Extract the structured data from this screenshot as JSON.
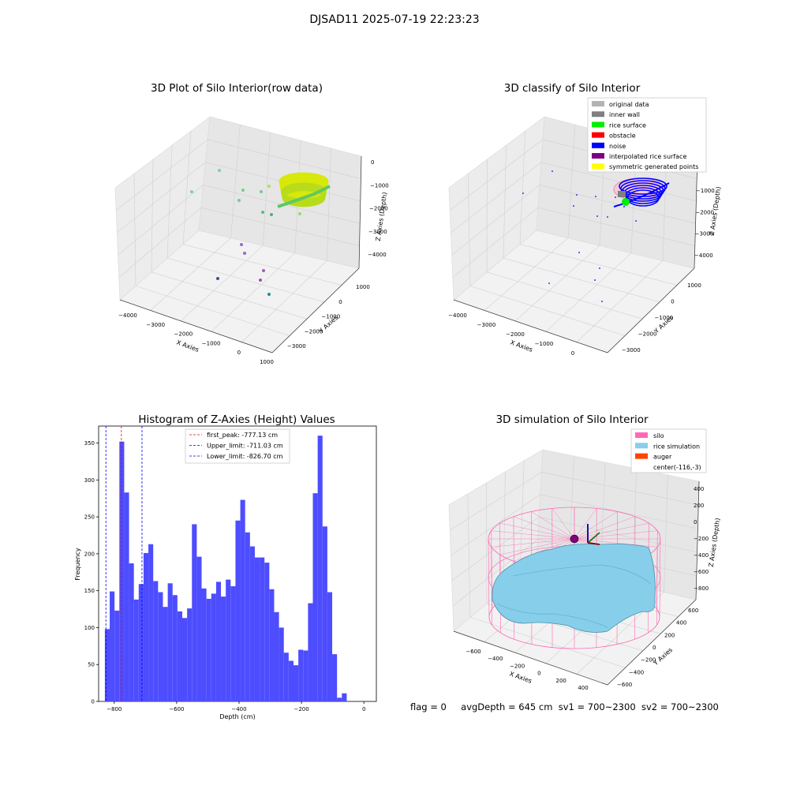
{
  "figure_title": "DJSAD11 2025-07-19 22:23:23",
  "status_line": {
    "flag": "flag = 0",
    "avg_depth": "avgDepth = 645 cm",
    "sv1": "sv1 = 700~2300",
    "sv2": "sv2 = 700~2300"
  },
  "chart_data": [
    {
      "type": "scatter",
      "title": "3D Plot of Silo Interior(row data)",
      "projection": "3d",
      "xlabel": "X Axies",
      "ylabel": "Y Axies",
      "zlabel": "Z Axies (Depth)",
      "x_ticks": [
        "−4000",
        "−3000",
        "−2000",
        "−1000",
        "0",
        "1000"
      ],
      "y_ticks": [
        "−3000",
        "−2000",
        "−1000",
        "0",
        "1000"
      ],
      "z_ticks": [
        "0",
        "−1000",
        "−2000",
        "−3000",
        "−4000"
      ],
      "colormap": "viridis",
      "grid": true
    },
    {
      "type": "scatter",
      "title": "3D classify of Silo Interior",
      "projection": "3d",
      "xlabel": "X Axies",
      "ylabel": "Y Axies",
      "zlabel": "Z Axies (Depth)",
      "x_ticks": [
        "−4000",
        "−3000",
        "−2000",
        "−1000",
        "0"
      ],
      "y_ticks": [
        "−3000",
        "−2000",
        "−1000",
        "0",
        "1000"
      ],
      "z_ticks": [
        "−1000",
        "−2000",
        "−3000",
        "−4000"
      ],
      "legend_position": "top-right",
      "legend": [
        {
          "label": "original data",
          "color": "#b3b3b3"
        },
        {
          "label": "inner wall",
          "color": "#808080"
        },
        {
          "label": "rice surface",
          "color": "#00ee00"
        },
        {
          "label": "obstacle",
          "color": "#ff0000"
        },
        {
          "label": "noise",
          "color": "#0000ff"
        },
        {
          "label": "interpolated rice surface",
          "color": "#800080"
        },
        {
          "label": "symmetric generated points",
          "color": "#ffff00"
        }
      ],
      "grid": true
    },
    {
      "type": "bar",
      "title": "Histogram of Z-Axies (Height) Values",
      "xlabel": "Depth (cm)",
      "ylabel": "Frequency",
      "x_ticks": [
        "−800",
        "−600",
        "−400",
        "−200",
        "0"
      ],
      "y_ticks": [
        "0",
        "50",
        "100",
        "150",
        "200",
        "250",
        "300",
        "350"
      ],
      "xlim": [
        -850,
        40
      ],
      "ylim": [
        0,
        373
      ],
      "bar_color": "#4d4dff",
      "bin_width": 15.5,
      "bin_start": -830,
      "values": [
        98,
        149,
        123,
        352,
        283,
        187,
        138,
        159,
        201,
        213,
        163,
        148,
        128,
        160,
        144,
        122,
        113,
        126,
        240,
        196,
        153,
        139,
        146,
        162,
        142,
        165,
        156,
        245,
        273,
        229,
        210,
        195,
        195,
        188,
        152,
        121,
        100,
        66,
        55,
        49,
        70,
        69,
        133,
        282,
        360,
        237,
        148,
        64,
        5,
        11
      ],
      "reference_lines": [
        {
          "label": "first_peak: -777.13 cm",
          "x": -777.13,
          "color": "#ff0000"
        },
        {
          "label": "Upper_limit: -711.03 cm",
          "x": -711.03,
          "color": "#0000ff"
        },
        {
          "label": "Lower_limit: -826.70 cm",
          "x": -826.7,
          "color": "#0000ff"
        }
      ],
      "legend_position": "top-center"
    },
    {
      "type": "surface",
      "title": "3D simulation of Silo Interior",
      "projection": "3d",
      "xlabel": "X Axies",
      "ylabel": "Y Axies",
      "zlabel": "Z Axies (Depth)",
      "x_ticks": [
        "−600",
        "−400",
        "−200",
        "0",
        "200",
        "400"
      ],
      "y_ticks": [
        "−600",
        "−400",
        "−200",
        "0",
        "200",
        "400",
        "600"
      ],
      "z_ticks": [
        "400",
        "200",
        "0",
        "−200",
        "−400",
        "−600",
        "−800"
      ],
      "legend_position": "top-right",
      "legend": [
        {
          "label": "silo",
          "color": "#ff69b4"
        },
        {
          "label": "rice simulation",
          "color": "#87ceeb"
        },
        {
          "label": "auger",
          "color": "#ff4500"
        },
        {
          "label": "center(-116,-3)",
          "color": ""
        }
      ],
      "grid": true
    }
  ]
}
